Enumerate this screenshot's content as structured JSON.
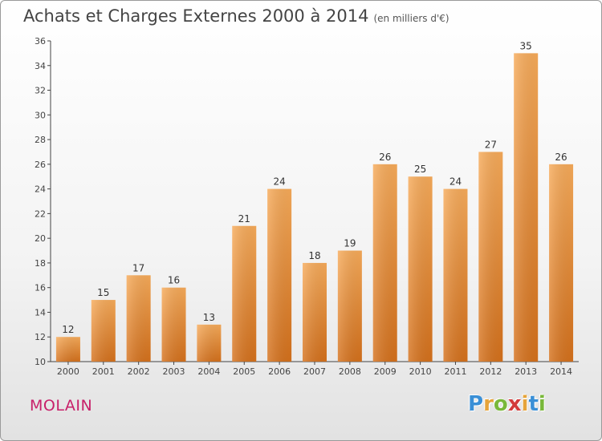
{
  "header": {
    "title": "Achats et Charges Externes 2000 à 2014",
    "subtitle": "(en milliers d'€)"
  },
  "footer": {
    "town": "MOLAIN",
    "brand": "Proxiti"
  },
  "colors": {
    "bar_light": "#f7ab5a",
    "bar_dark": "#d5711c",
    "town": "#c8206a"
  },
  "chart_data": {
    "type": "bar",
    "categories": [
      "2000",
      "2001",
      "2002",
      "2003",
      "2004",
      "2005",
      "2006",
      "2007",
      "2008",
      "2009",
      "2010",
      "2011",
      "2012",
      "2013",
      "2014"
    ],
    "values": [
      12,
      15,
      17,
      16,
      13,
      21,
      24,
      18,
      19,
      26,
      25,
      24,
      27,
      35,
      26
    ],
    "ylim": [
      10,
      36
    ],
    "yticks": [
      10,
      12,
      14,
      16,
      18,
      20,
      22,
      24,
      26,
      28,
      30,
      32,
      34,
      36
    ],
    "grid": false,
    "legend": "none"
  }
}
